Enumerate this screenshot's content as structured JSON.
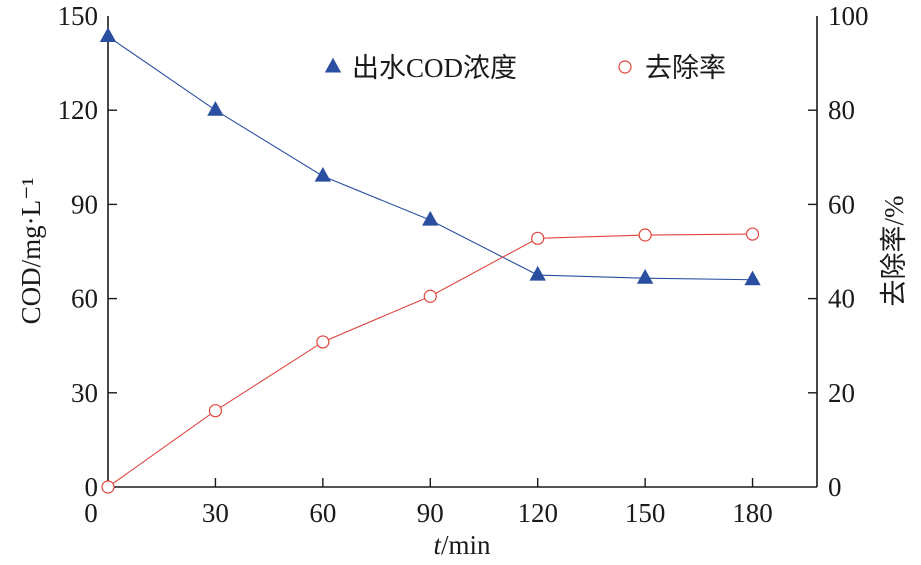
{
  "chart_data": {
    "type": "line",
    "x": [
      0,
      30,
      60,
      90,
      120,
      150,
      180
    ],
    "x_ticks": [
      "0",
      "30",
      "60",
      "90",
      "120",
      "150",
      "180"
    ],
    "xlim": [
      0,
      198
    ],
    "x_label_italic": "t",
    "x_label_rest": "/min",
    "y_left": {
      "label": "COD/mg·L⁻¹",
      "lim": [
        0,
        150
      ],
      "ticks": [
        "0",
        "30",
        "60",
        "90",
        "120",
        "150"
      ]
    },
    "y_right": {
      "label": "去除率/%",
      "lim": [
        0,
        100
      ],
      "ticks": [
        "0",
        "20",
        "40",
        "60",
        "80",
        "100"
      ]
    },
    "series": [
      {
        "name": "出水COD浓度",
        "axis": "left",
        "marker": "filled-triangle",
        "color": "#2b4fa0",
        "values": [
          143.5,
          120,
          99,
          85,
          67.5,
          66.5,
          66
        ]
      },
      {
        "name": "去除率",
        "axis": "right",
        "marker": "open-circle",
        "color": "#e0443c",
        "values": [
          0,
          16.2,
          30.8,
          40.5,
          52.8,
          53.5,
          53.7
        ]
      }
    ],
    "legend_position": "top-center",
    "grid": false
  }
}
